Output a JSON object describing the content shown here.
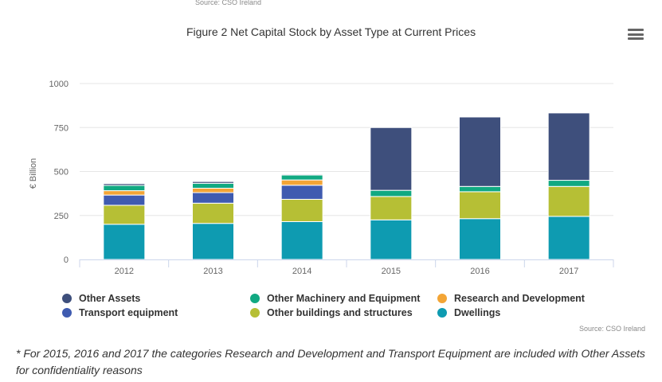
{
  "header": {
    "top_source": "Source: CSO Ireland",
    "menu_icon": "hamburger-menu-icon"
  },
  "footer": {
    "source": "Source: CSO Ireland",
    "footnote": "* For 2015, 2016 and 2017 the categories Research and Development and Transport Equipment are included with Other Assets for confidentiality reasons"
  },
  "colors": {
    "grid": "#e6e6e6",
    "axis": "#ccd6eb",
    "tick_text": "#666666"
  },
  "chart_data": {
    "type": "bar",
    "stacked": true,
    "title": "Figure 2 Net Capital Stock by Asset Type at Current Prices",
    "xlabel": "",
    "ylabel": "€ Billion",
    "ylim": [
      0,
      1000
    ],
    "yticks": [
      0,
      250,
      500,
      750,
      1000
    ],
    "grid": true,
    "legend_position": "bottom",
    "categories": [
      "2012",
      "2013",
      "2014",
      "2015",
      "2016",
      "2017"
    ],
    "series": [
      {
        "name": "Dwellings",
        "color": "#0e9bb1",
        "values": [
          200,
          205,
          215,
          225,
          232,
          245
        ]
      },
      {
        "name": "Other buildings and structures",
        "color": "#b6bf35",
        "values": [
          108,
          115,
          127,
          133,
          153,
          170
        ]
      },
      {
        "name": "Transport equipment",
        "color": "#3f5bb0",
        "values": [
          58,
          60,
          80,
          0,
          0,
          0
        ]
      },
      {
        "name": "Research and Development",
        "color": "#f3a536",
        "values": [
          25,
          25,
          30,
          0,
          0,
          0
        ]
      },
      {
        "name": "Other Machinery and Equipment",
        "color": "#11a982",
        "values": [
          30,
          28,
          28,
          35,
          30,
          35
        ]
      },
      {
        "name": "Other Assets",
        "color": "#3e4f7c",
        "values": [
          10,
          10,
          5,
          357,
          395,
          383
        ]
      }
    ],
    "legend_order": [
      "Other Assets",
      "Other Machinery and Equipment",
      "Research and Development",
      "Transport equipment",
      "Other buildings and structures",
      "Dwellings"
    ]
  }
}
